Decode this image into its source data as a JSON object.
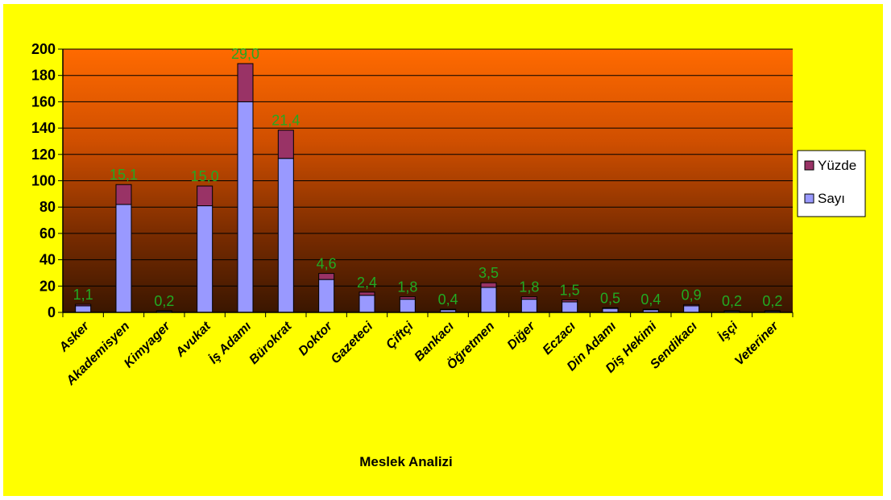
{
  "chart_data": {
    "type": "bar",
    "stacked": true,
    "categories": [
      "Asker",
      "Akademisyen",
      "Kimyager",
      "Avukat",
      "İş Adamı",
      "Bürokrat",
      "Doktor",
      "Gazeteci",
      "Çiftçi",
      "Bankacı",
      "Öğretmen",
      "Diğer",
      "Eczacı",
      "Din Adamı",
      "Diş Hekimi",
      "Sendikacı",
      "İşçi",
      "Veteriner"
    ],
    "series": [
      {
        "name": "Sayı",
        "color": "#9999ff",
        "values": [
          5,
          82,
          1,
          81,
          160,
          117,
          25,
          13,
          10,
          2,
          19,
          10,
          8,
          3,
          2,
          5,
          1,
          1
        ]
      },
      {
        "name": "Yüzde",
        "color": "#993366",
        "values": [
          1.1,
          15.1,
          0.2,
          15.0,
          29.0,
          21.4,
          4.6,
          2.4,
          1.8,
          0.4,
          3.5,
          1.8,
          1.5,
          0.5,
          0.4,
          0.9,
          0.2,
          0.2
        ]
      }
    ],
    "data_labels": [
      "1,1",
      "15,1",
      "0,2",
      "15,0",
      "29,0",
      "21,4",
      "4,6",
      "2,4",
      "1,8",
      "0,4",
      "3,5",
      "1,8",
      "1,5",
      "0,5",
      "0,4",
      "0,9",
      "0,2",
      "0,2"
    ],
    "xlabel": "Meslek Analizi",
    "ylabel": "",
    "ylim": [
      0,
      200
    ],
    "yticks": [
      "0",
      "20",
      "40",
      "60",
      "80",
      "100",
      "120",
      "140",
      "160",
      "180",
      "200"
    ],
    "legend": {
      "placement": "right",
      "entries": [
        "Yüzde",
        "Sayı"
      ]
    },
    "grid": true,
    "colors": {
      "background": "#ffff00",
      "plot_top": "#ff6600",
      "plot_bottom": "#3a1a00",
      "label": "#22aa22"
    }
  }
}
